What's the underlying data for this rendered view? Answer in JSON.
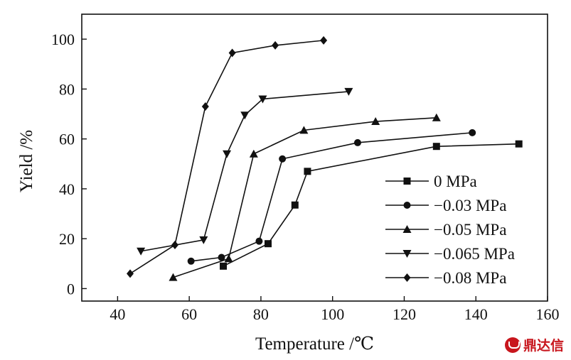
{
  "chart_data": {
    "type": "line",
    "xlabel": "Temperature /℃",
    "ylabel": "Yield /%",
    "xlim": [
      30,
      160
    ],
    "ylim": [
      -5,
      110
    ],
    "x_ticks": [
      40,
      60,
      80,
      100,
      120,
      140,
      160
    ],
    "y_ticks": [
      0,
      20,
      40,
      60,
      80,
      100
    ],
    "grid": false,
    "legend_position": "lower-right",
    "series": [
      {
        "name": "0 MPa",
        "marker": "square",
        "points": [
          [
            69.5,
            9
          ],
          [
            82,
            18
          ],
          [
            89.5,
            33.5
          ],
          [
            93,
            47
          ],
          [
            129,
            57
          ],
          [
            152,
            58
          ]
        ]
      },
      {
        "name": "−0.03 MPa",
        "marker": "circle",
        "points": [
          [
            60.5,
            11
          ],
          [
            69,
            12.5
          ],
          [
            79.5,
            19
          ],
          [
            86,
            52
          ],
          [
            107,
            58.5
          ],
          [
            139,
            62.5
          ]
        ]
      },
      {
        "name": "−0.05 MPa",
        "marker": "triangle-up",
        "points": [
          [
            55.5,
            4.5
          ],
          [
            71,
            12
          ],
          [
            78,
            54
          ],
          [
            92,
            63.5
          ],
          [
            112,
            67
          ],
          [
            129,
            68.5
          ]
        ]
      },
      {
        "name": "−0.065 MPa",
        "marker": "triangle-down",
        "points": [
          [
            46.5,
            15
          ],
          [
            64,
            19.5
          ],
          [
            70.5,
            54
          ],
          [
            75.5,
            69.5
          ],
          [
            80.5,
            76
          ],
          [
            104.5,
            79
          ]
        ]
      },
      {
        "name": "−0.08 MPa",
        "marker": "diamond",
        "points": [
          [
            43.5,
            6
          ],
          [
            56,
            17.5
          ],
          [
            64.5,
            73
          ],
          [
            72,
            94.5
          ],
          [
            84,
            97.5
          ],
          [
            97.5,
            99.5
          ]
        ]
      }
    ]
  },
  "watermark": {
    "text": "鼎达信",
    "logo_icon": "dingdaxin-logo-icon",
    "color": "#c8161d"
  }
}
